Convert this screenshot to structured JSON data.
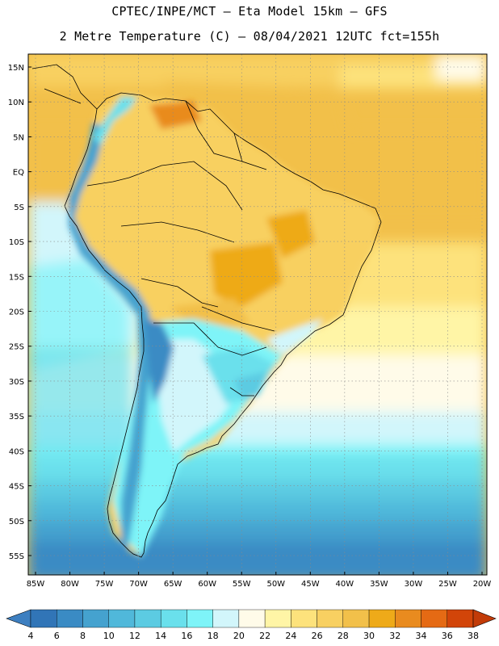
{
  "title": {
    "line1": "CPTEC/INPE/MCT –  Eta Model 15km – GFS",
    "line2": "2 Metre Temperature (C) – 08/04/2021 12UTC fct=155h"
  },
  "map": {
    "lat_labels": [
      "15N",
      "10N",
      "5N",
      "EQ",
      "5S",
      "10S",
      "15S",
      "20S",
      "25S",
      "30S",
      "35S",
      "40S",
      "45S",
      "50S",
      "55S"
    ],
    "lon_labels": [
      "85W",
      "80W",
      "75W",
      "70W",
      "65W",
      "60W",
      "55W",
      "50W",
      "45W",
      "40W",
      "35W",
      "30W",
      "25W",
      "20W"
    ],
    "lat_range": [
      -58,
      17
    ],
    "lon_range": [
      -86,
      -20
    ]
  },
  "colorbar": {
    "values": [
      "4",
      "6",
      "8",
      "10",
      "12",
      "14",
      "16",
      "18",
      "20",
      "22",
      "24",
      "26",
      "28",
      "30",
      "32",
      "34",
      "36",
      "38"
    ],
    "low_color": "#3d7fc0",
    "high_color": "#c23b08",
    "colors": [
      "#3175b7",
      "#3a8bc4",
      "#45a2cf",
      "#50b8da",
      "#5ccbe2",
      "#6ae0ec",
      "#7ef4f8",
      "#d2f6fb",
      "#fffbe9",
      "#fff5a6",
      "#fde27c",
      "#f8d061",
      "#f2c04a",
      "#eeaa19",
      "#e98b1f",
      "#e56a14",
      "#d24509"
    ]
  }
}
